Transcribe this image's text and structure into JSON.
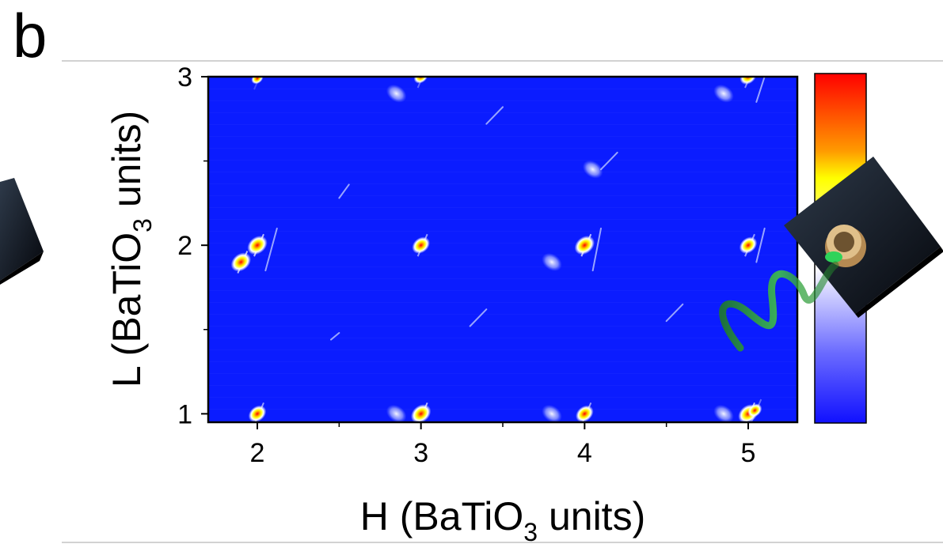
{
  "panel_label": "b",
  "colors": {
    "background": "#0b1cff",
    "frame": "#000000",
    "separator": "#bdbdbd",
    "colorbar_stops": [
      "#ff0000",
      "#ff9900",
      "#ffff00",
      "#ffffff",
      "#2020ff"
    ]
  },
  "chart_data": {
    "type": "heatmap",
    "title": "",
    "xlabel": {
      "prefix": "H (BaTiO",
      "sub": "3",
      "suffix": " units)"
    },
    "ylabel": {
      "prefix": "L (BaTiO",
      "sub": "3",
      "suffix": " units)"
    },
    "xlim": [
      1.7,
      5.3
    ],
    "ylim": [
      0.95,
      3.0
    ],
    "x_ticks": [
      2,
      3,
      4,
      5
    ],
    "x_tick_labels": [
      "2",
      "3",
      "4",
      "5"
    ],
    "x_minor_ticks": [
      2.5,
      3.5,
      4.5
    ],
    "y_ticks": [
      1,
      2,
      3
    ],
    "y_tick_labels": [
      "1",
      "2",
      "3"
    ],
    "y_minor_ticks": [
      1.5,
      2.5
    ],
    "grid": false,
    "colorbar": true,
    "peaks": [
      {
        "h": 2.0,
        "l": 1.0,
        "intensity": 0.8
      },
      {
        "h": 3.0,
        "l": 1.0,
        "intensity": 1.0
      },
      {
        "h": 4.0,
        "l": 1.0,
        "intensity": 0.8
      },
      {
        "h": 5.0,
        "l": 1.0,
        "intensity": 1.0
      },
      {
        "h": 5.04,
        "l": 1.02,
        "intensity": 0.5
      },
      {
        "h": 1.9,
        "l": 1.9,
        "intensity": 1.0
      },
      {
        "h": 2.0,
        "l": 2.0,
        "intensity": 1.0
      },
      {
        "h": 3.0,
        "l": 2.0,
        "intensity": 0.8
      },
      {
        "h": 4.0,
        "l": 2.0,
        "intensity": 1.0
      },
      {
        "h": 5.0,
        "l": 2.0,
        "intensity": 0.8
      },
      {
        "h": 3.0,
        "l": 3.0,
        "intensity": 0.5
      },
      {
        "h": 5.0,
        "l": 3.0,
        "intensity": 0.7
      },
      {
        "h": 2.0,
        "l": 2.99,
        "intensity": 0.3
      }
    ],
    "diffuse_spots": [
      {
        "h": 2.85,
        "l": 1.0
      },
      {
        "h": 3.8,
        "l": 1.0
      },
      {
        "h": 4.85,
        "l": 1.0
      },
      {
        "h": 3.8,
        "l": 1.9
      },
      {
        "h": 2.85,
        "l": 2.9
      },
      {
        "h": 4.85,
        "l": 2.9
      },
      {
        "h": 4.05,
        "l": 2.45
      }
    ],
    "streaks": [
      {
        "h1": 2.45,
        "l1": 1.44,
        "h2": 2.5,
        "l2": 1.48
      },
      {
        "h1": 2.5,
        "l1": 2.28,
        "h2": 2.56,
        "l2": 2.36
      },
      {
        "h1": 3.4,
        "l1": 2.72,
        "h2": 3.5,
        "l2": 2.82
      },
      {
        "h1": 4.1,
        "l1": 2.45,
        "h2": 4.2,
        "l2": 2.55
      },
      {
        "h1": 3.3,
        "l1": 1.52,
        "h2": 3.4,
        "l2": 1.62
      },
      {
        "h1": 4.5,
        "l1": 1.55,
        "h2": 4.6,
        "l2": 1.65
      },
      {
        "h1": 2.05,
        "l1": 1.85,
        "h2": 2.12,
        "l2": 2.1
      },
      {
        "h1": 4.05,
        "l1": 1.85,
        "h2": 4.1,
        "l2": 2.1
      },
      {
        "h1": 5.05,
        "l1": 1.9,
        "h2": 5.1,
        "l2": 2.1
      },
      {
        "h1": 5.05,
        "l1": 2.85,
        "h2": 5.1,
        "l2": 3.0
      }
    ]
  }
}
